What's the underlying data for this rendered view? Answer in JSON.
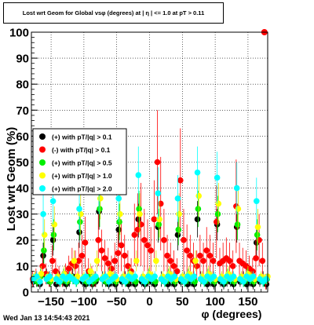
{
  "title": "Lost wrt Geom for Global vsφ (degrees) at | η | <= 1.0 at pT > 0.11",
  "timestamp": "Wed Jan 13 14:54:43 2021",
  "chart_data": {
    "type": "scatter",
    "xlabel": "φ (degrees)",
    "ylabel": "Lost wrt Geom (%)",
    "xlim": [
      -180,
      180
    ],
    "ylim": [
      0,
      100
    ],
    "xticks": [
      -150,
      -100,
      -50,
      0,
      50,
      100,
      150
    ],
    "xtick_labels": [
      "−150",
      "−100",
      "−50",
      "0",
      "50",
      "100",
      "150"
    ],
    "yticks": [
      0,
      10,
      20,
      30,
      40,
      50,
      60,
      70,
      80,
      90,
      100
    ],
    "grid": true,
    "legend_position": "left-center",
    "series": [
      {
        "name": "(+) with pT/|q| > 0.1",
        "color": "#000000",
        "x": [
          -177,
          -172,
          -167,
          -162,
          -157,
          -152,
          -147,
          -142,
          -137,
          -132,
          -127,
          -122,
          -117,
          -112,
          -107,
          -102,
          -97,
          -92,
          -87,
          -82,
          -77,
          -72,
          -67,
          -62,
          -57,
          -52,
          -47,
          -42,
          -37,
          -32,
          -27,
          -22,
          -17,
          -12,
          -7,
          -2,
          3,
          8,
          13,
          18,
          23,
          28,
          33,
          38,
          43,
          48,
          53,
          58,
          63,
          68,
          73,
          78,
          83,
          88,
          93,
          98,
          103,
          108,
          113,
          118,
          123,
          128,
          133,
          138,
          143,
          148,
          153,
          158,
          163,
          168,
          173,
          178
        ],
        "y": [
          4,
          5,
          3,
          14,
          6,
          4,
          20,
          3,
          5,
          4,
          3,
          5,
          6,
          4,
          23,
          4,
          3,
          5,
          3,
          4,
          31,
          5,
          4,
          3,
          5,
          3,
          24,
          4,
          5,
          3,
          4,
          3,
          28,
          4,
          3,
          5,
          4,
          3,
          25,
          5,
          4,
          3,
          5,
          3,
          22,
          4,
          5,
          3,
          4,
          3,
          28,
          5,
          4,
          3,
          5,
          3,
          26,
          4,
          3,
          5,
          4,
          3,
          25,
          4,
          5,
          3,
          4,
          3,
          19,
          4,
          5,
          3
        ],
        "err": [
          2,
          3,
          2,
          5,
          3,
          2,
          6,
          2,
          3,
          2,
          2,
          3,
          3,
          2,
          6,
          2,
          2,
          3,
          2,
          2,
          7,
          3,
          2,
          2,
          3,
          2,
          6,
          2,
          3,
          2,
          2,
          2,
          7,
          2,
          2,
          3,
          2,
          2,
          6,
          3,
          2,
          2,
          3,
          2,
          6,
          2,
          3,
          2,
          2,
          2,
          7,
          3,
          2,
          2,
          3,
          2,
          6,
          2,
          2,
          3,
          2,
          2,
          6,
          2,
          3,
          2,
          2,
          2,
          5,
          2,
          3,
          2
        ]
      },
      {
        "name": "(-) with pT/|q| > 0.1",
        "color": "#ff0000",
        "x": [
          -178,
          -173,
          -168,
          -163,
          -158,
          -153,
          -148,
          -143,
          -138,
          -133,
          -128,
          -123,
          -118,
          -113,
          -108,
          -103,
          -98,
          -93,
          -88,
          -83,
          -78,
          -73,
          -68,
          -63,
          -58,
          -53,
          -48,
          -43,
          -38,
          -33,
          -28,
          -23,
          -18,
          -13,
          -8,
          -3,
          2,
          7,
          12,
          17,
          22,
          27,
          32,
          37,
          42,
          47,
          52,
          57,
          62,
          67,
          72,
          77,
          82,
          87,
          92,
          97,
          102,
          107,
          112,
          117,
          122,
          127,
          132,
          137,
          142,
          147,
          152,
          157,
          162,
          167,
          172,
          177
        ],
        "y": [
          5,
          6,
          4,
          10,
          7,
          5,
          12,
          8,
          6,
          5,
          7,
          9,
          11,
          10,
          12,
          14,
          19,
          8,
          6,
          5,
          20,
          16,
          13,
          11,
          9,
          12,
          15,
          18,
          14,
          10,
          8,
          22,
          24,
          26,
          20,
          18,
          16,
          28,
          50,
          34,
          20,
          14,
          12,
          10,
          8,
          43,
          20,
          16,
          14,
          12,
          10,
          14,
          12,
          16,
          14,
          12,
          27,
          11,
          12,
          13,
          12,
          10,
          33,
          12,
          11,
          10,
          9,
          8,
          13,
          20,
          12,
          4
        ],
        "err": [
          3,
          3,
          2,
          5,
          4,
          3,
          6,
          5,
          4,
          3,
          4,
          5,
          6,
          6,
          7,
          8,
          10,
          5,
          4,
          3,
          10,
          8,
          7,
          6,
          5,
          7,
          8,
          10,
          8,
          6,
          5,
          12,
          14,
          16,
          12,
          10,
          9,
          15,
          20,
          18,
          12,
          8,
          7,
          6,
          5,
          20,
          12,
          10,
          8,
          7,
          6,
          8,
          7,
          9,
          8,
          7,
          14,
          6,
          7,
          8,
          7,
          6,
          18,
          7,
          6,
          6,
          5,
          5,
          7,
          10,
          7,
          3
        ]
      },
      {
        "name": "(+) with pT/|q| > 0.5",
        "color": "#00ee00",
        "x": [
          -176,
          -171,
          -166,
          -161,
          -156,
          -151,
          -146,
          -141,
          -136,
          -131,
          -126,
          -121,
          -116,
          -111,
          -106,
          -101,
          -96,
          -91,
          -86,
          -81,
          -76,
          -71,
          -66,
          -61,
          -56,
          -51,
          -46,
          -41,
          -36,
          -31,
          -26,
          -21,
          -16,
          -11,
          -6,
          -1,
          4,
          9,
          14,
          19,
          24,
          29,
          34,
          39,
          44,
          49,
          54,
          59,
          64,
          69,
          74,
          79,
          84,
          89,
          94,
          99,
          104,
          109,
          114,
          119,
          124,
          129,
          134,
          139,
          144,
          149,
          154,
          159,
          164,
          169,
          174,
          179
        ],
        "y": [
          5,
          4,
          6,
          16,
          5,
          4,
          22,
          5,
          4,
          6,
          4,
          5,
          5,
          4,
          27,
          5,
          4,
          6,
          4,
          5,
          32,
          5,
          4,
          6,
          5,
          4,
          27,
          5,
          4,
          6,
          5,
          4,
          32,
          5,
          4,
          6,
          5,
          4,
          26,
          5,
          4,
          6,
          5,
          4,
          24,
          5,
          4,
          6,
          5,
          4,
          32,
          5,
          4,
          6,
          5,
          4,
          30,
          5,
          4,
          6,
          5,
          4,
          26,
          5,
          4,
          6,
          5,
          4,
          22,
          5,
          4,
          5
        ],
        "err": [
          2,
          2,
          3,
          5,
          2,
          2,
          6,
          2,
          2,
          3,
          2,
          2,
          2,
          2,
          7,
          2,
          2,
          3,
          2,
          2,
          7,
          2,
          2,
          3,
          2,
          2,
          7,
          2,
          2,
          3,
          2,
          2,
          7,
          2,
          2,
          3,
          2,
          2,
          6,
          2,
          2,
          3,
          2,
          2,
          6,
          2,
          2,
          3,
          2,
          2,
          7,
          2,
          2,
          3,
          2,
          2,
          7,
          2,
          2,
          3,
          2,
          2,
          6,
          2,
          2,
          3,
          2,
          2,
          6,
          2,
          2,
          2
        ]
      },
      {
        "name": "(+) with pT/|q| > 1.0",
        "color": "#ffff00",
        "x": [
          -175,
          -170,
          -165,
          -160,
          -155,
          -150,
          -145,
          -140,
          -135,
          -130,
          -125,
          -120,
          -115,
          -110,
          -105,
          -100,
          -95,
          -90,
          -85,
          -80,
          -75,
          -70,
          -65,
          -60,
          -55,
          -50,
          -45,
          -40,
          -35,
          -30,
          -25,
          -20,
          -15,
          -10,
          -5,
          0,
          5,
          10,
          15,
          20,
          25,
          30,
          35,
          40,
          45,
          50,
          55,
          60,
          65,
          70,
          75,
          80,
          85,
          90,
          95,
          100,
          105,
          110,
          115,
          120,
          125,
          130,
          135,
          140,
          145,
          150,
          155,
          160,
          165,
          170,
          175,
          180
        ],
        "y": [
          6,
          5,
          7,
          22,
          6,
          5,
          26,
          6,
          5,
          7,
          5,
          6,
          12,
          6,
          30,
          6,
          5,
          8,
          6,
          12,
          36,
          6,
          5,
          7,
          6,
          5,
          30,
          6,
          5,
          7,
          6,
          12,
          30,
          6,
          5,
          7,
          6,
          12,
          28,
          6,
          5,
          7,
          6,
          5,
          30,
          6,
          5,
          7,
          6,
          12,
          37,
          6,
          5,
          7,
          6,
          5,
          34,
          6,
          5,
          7,
          6,
          5,
          32,
          6,
          5,
          7,
          6,
          5,
          25,
          6,
          5,
          6
        ],
        "err": [
          2,
          2,
          3,
          6,
          2,
          2,
          7,
          2,
          2,
          3,
          2,
          2,
          4,
          2,
          8,
          2,
          2,
          3,
          2,
          4,
          8,
          2,
          2,
          3,
          2,
          2,
          8,
          2,
          2,
          3,
          2,
          4,
          8,
          2,
          2,
          3,
          2,
          4,
          7,
          2,
          2,
          3,
          2,
          2,
          8,
          2,
          2,
          3,
          2,
          4,
          8,
          2,
          2,
          3,
          2,
          2,
          8,
          2,
          2,
          3,
          2,
          2,
          8,
          2,
          2,
          3,
          2,
          2,
          7,
          2,
          2,
          2
        ]
      },
      {
        "name": "(+) with pT/|q| > 2.0",
        "color": "#00ffff",
        "x": [
          -177,
          -172,
          -167,
          -162,
          -157,
          -152,
          -147,
          -142,
          -137,
          -132,
          -127,
          -122,
          -117,
          -112,
          -107,
          -102,
          -97,
          -92,
          -87,
          -82,
          -77,
          -72,
          -67,
          -62,
          -57,
          -52,
          -47,
          -42,
          -37,
          -32,
          -27,
          -22,
          -17,
          -12,
          -7,
          -2,
          3,
          8,
          13,
          18,
          23,
          28,
          33,
          38,
          43,
          48,
          53,
          58,
          63,
          68,
          73,
          78,
          83,
          88,
          93,
          98,
          103,
          108,
          113,
          118,
          123,
          128,
          133,
          138,
          143,
          148,
          153,
          158,
          163,
          168,
          173,
          178
        ],
        "y": [
          5,
          6,
          4,
          30,
          5,
          6,
          35,
          5,
          4,
          6,
          5,
          6,
          5,
          4,
          32,
          5,
          6,
          4,
          5,
          6,
          40,
          5,
          6,
          4,
          5,
          6,
          36,
          5,
          4,
          6,
          5,
          6,
          45,
          5,
          4,
          6,
          5,
          6,
          38,
          5,
          4,
          6,
          5,
          6,
          36,
          5,
          4,
          6,
          5,
          6,
          46,
          5,
          4,
          6,
          5,
          6,
          44,
          5,
          4,
          6,
          5,
          6,
          40,
          5,
          4,
          6,
          5,
          6,
          35,
          5,
          4,
          5
        ],
        "err": [
          2,
          2,
          2,
          8,
          2,
          2,
          9,
          2,
          2,
          2,
          2,
          2,
          2,
          2,
          9,
          2,
          2,
          2,
          2,
          2,
          10,
          2,
          2,
          2,
          2,
          2,
          9,
          2,
          2,
          2,
          2,
          2,
          11,
          2,
          2,
          2,
          2,
          2,
          10,
          2,
          2,
          2,
          2,
          2,
          9,
          2,
          2,
          2,
          2,
          2,
          10,
          2,
          2,
          2,
          2,
          2,
          10,
          2,
          2,
          2,
          2,
          2,
          10,
          2,
          2,
          2,
          2,
          2,
          9,
          2,
          2,
          2
        ]
      }
    ],
    "annotations": [
      {
        "series": 1,
        "x": 175,
        "y": 100
      }
    ]
  }
}
